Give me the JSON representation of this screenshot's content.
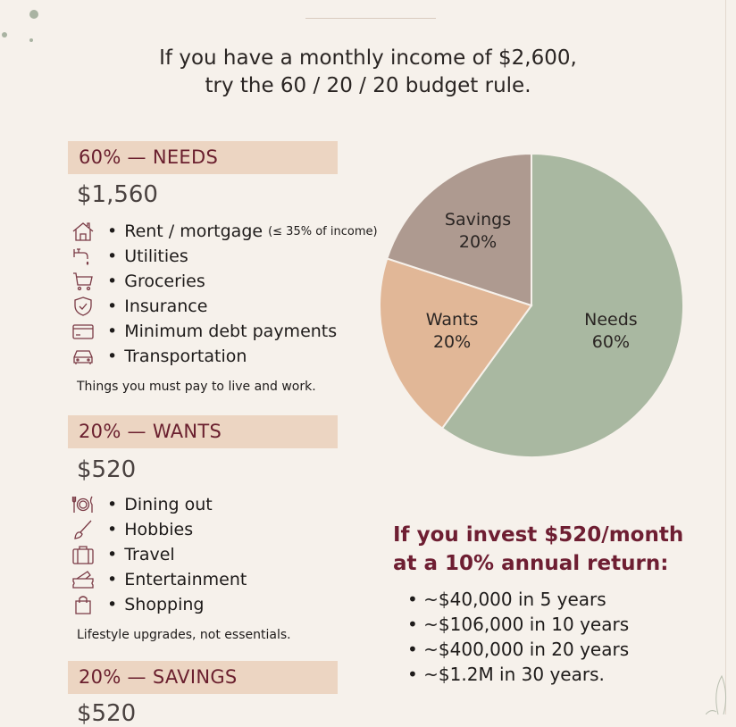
{
  "title": {
    "line1": "If you have a monthly income of $2,600,",
    "line2": "try the 60 / 20 / 20 budget rule."
  },
  "colors": {
    "heading_bar": "#ecd5c2",
    "heading_text": "#6a1f2e",
    "needs": "#a9b8a1",
    "wants": "#e1b797",
    "savings": "#ae9a90",
    "invest_title": "#6e1e32"
  },
  "sections": [
    {
      "heading": "60% — NEEDS",
      "amount": "$1,560",
      "items": [
        {
          "icon": "house-icon",
          "label": "Rent / mortgage",
          "note": "(≤ 35% of income)"
        },
        {
          "icon": "faucet-icon",
          "label": "Utilities"
        },
        {
          "icon": "cart-icon",
          "label": "Groceries"
        },
        {
          "icon": "shield-icon",
          "label": "Insurance"
        },
        {
          "icon": "credit-card-icon",
          "label": "Minimum debt payments"
        },
        {
          "icon": "car-icon",
          "label": "Transportation"
        }
      ],
      "description": "Things you must pay to live and work."
    },
    {
      "heading": "20% — WANTS",
      "amount": "$520",
      "items": [
        {
          "icon": "dining-icon",
          "label": "Dining out"
        },
        {
          "icon": "brush-icon",
          "label": "Hobbies"
        },
        {
          "icon": "suitcase-icon",
          "label": "Travel"
        },
        {
          "icon": "ticket-icon",
          "label": "Entertainment"
        },
        {
          "icon": "shopping-bag-icon",
          "label": "Shopping"
        }
      ],
      "description": "Lifestyle upgrades, not essentials."
    },
    {
      "heading": "20% — SAVINGS",
      "amount": "$520"
    }
  ],
  "chart_data": {
    "type": "pie",
    "categories": [
      "Needs",
      "Wants",
      "Savings"
    ],
    "values": [
      60,
      20,
      20
    ],
    "labels": [
      "60%",
      "20%",
      "20%"
    ],
    "colors": [
      "#a9b8a1",
      "#e1b797",
      "#ae9a90"
    ],
    "start": "top",
    "direction": "clockwise"
  },
  "invest": {
    "title_line1": "If you invest $520/month",
    "title_line2": "at a 10% annual return:",
    "items": [
      "~$40,000 in 5 years",
      "~$106,000 in 10 years",
      "~$400,000 in 20 years",
      "~$1.2M in 30 years."
    ]
  }
}
